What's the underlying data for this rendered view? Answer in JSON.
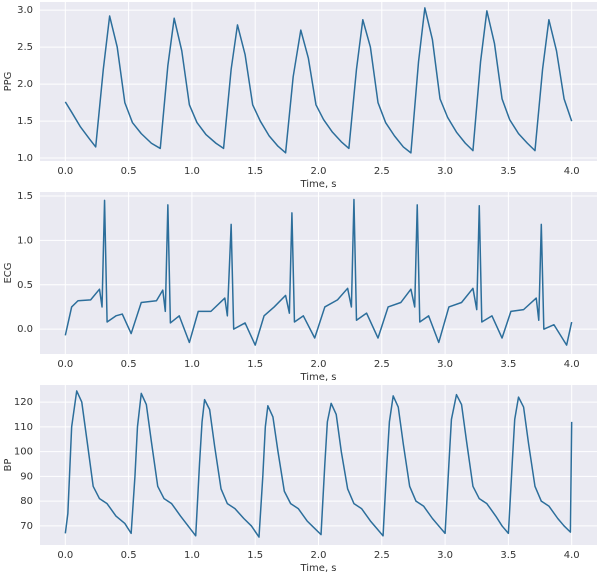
{
  "chart_data": [
    {
      "type": "line",
      "y_label": "PPG",
      "x_label": "Time, s",
      "grid": true,
      "xlim": [
        -0.2,
        4.2
      ],
      "ylim": [
        0.96,
        3.11
      ],
      "xticks": [
        {
          "value": 0,
          "label": "0.0"
        },
        0.5,
        {
          "value": 1,
          "label": "1.0"
        },
        1.5,
        {
          "value": 2,
          "label": "2.0"
        },
        2.5,
        {
          "value": 3,
          "label": "3.0"
        },
        3.5,
        {
          "value": 4,
          "label": "4.0"
        }
      ],
      "yticks": [
        {
          "value": 1,
          "label": "1.0"
        },
        1.5,
        {
          "value": 2,
          "label": "2.0"
        },
        2.5,
        {
          "value": 3,
          "label": "3.0"
        }
      ],
      "x": [
        0.0,
        0.05,
        0.12,
        0.19,
        0.24,
        0.3,
        0.35,
        0.41,
        0.47,
        0.53,
        0.6,
        0.68,
        0.75,
        0.81,
        0.86,
        0.92,
        0.98,
        1.04,
        1.11,
        1.19,
        1.25,
        1.31,
        1.36,
        1.42,
        1.48,
        1.54,
        1.61,
        1.68,
        1.74,
        1.8,
        1.86,
        1.92,
        1.98,
        2.04,
        2.11,
        2.18,
        2.24,
        2.3,
        2.35,
        2.41,
        2.47,
        2.53,
        2.6,
        2.67,
        2.73,
        2.79,
        2.84,
        2.9,
        2.96,
        3.02,
        3.09,
        3.16,
        3.22,
        3.28,
        3.33,
        3.39,
        3.45,
        3.51,
        3.58,
        3.65,
        3.71,
        3.77,
        3.82,
        3.88,
        3.94,
        4.0
      ],
      "series": [
        {
          "color": "#2c6e9b",
          "values": [
            1.76,
            1.62,
            1.42,
            1.26,
            1.15,
            2.2,
            2.92,
            2.5,
            1.75,
            1.48,
            1.33,
            1.2,
            1.13,
            2.25,
            2.89,
            2.45,
            1.72,
            1.48,
            1.32,
            1.2,
            1.13,
            2.2,
            2.8,
            2.4,
            1.72,
            1.5,
            1.3,
            1.16,
            1.07,
            2.1,
            2.73,
            2.35,
            1.72,
            1.52,
            1.35,
            1.22,
            1.13,
            2.2,
            2.87,
            2.5,
            1.75,
            1.48,
            1.3,
            1.15,
            1.07,
            2.3,
            3.03,
            2.6,
            1.8,
            1.55,
            1.35,
            1.2,
            1.1,
            2.3,
            2.99,
            2.55,
            1.8,
            1.52,
            1.33,
            1.2,
            1.1,
            2.2,
            2.87,
            2.45,
            1.8,
            1.5
          ]
        }
      ]
    },
    {
      "type": "line",
      "y_label": "ECG",
      "x_label": "Time, s",
      "grid": true,
      "xlim": [
        -0.2,
        4.2
      ],
      "ylim": [
        -0.28,
        1.545
      ],
      "xticks": [
        {
          "value": 0,
          "label": "0.0"
        },
        0.5,
        {
          "value": 1,
          "label": "1.0"
        },
        1.5,
        {
          "value": 2,
          "label": "2.0"
        },
        2.5,
        {
          "value": 3,
          "label": "3.0"
        },
        3.5,
        {
          "value": 4,
          "label": "4.0"
        }
      ],
      "yticks": [
        {
          "value": 0,
          "label": "0.0"
        },
        0.5,
        {
          "value": 1,
          "label": "1.0"
        },
        1.5
      ],
      "x": [
        0.0,
        0.05,
        0.1,
        0.2,
        0.27,
        0.29,
        0.31,
        0.33,
        0.4,
        0.45,
        0.52,
        0.6,
        0.72,
        0.77,
        0.79,
        0.81,
        0.83,
        0.9,
        0.98,
        1.05,
        1.15,
        1.26,
        1.28,
        1.31,
        1.33,
        1.42,
        1.5,
        1.57,
        1.65,
        1.74,
        1.77,
        1.79,
        1.81,
        1.88,
        1.97,
        2.05,
        2.15,
        2.23,
        2.26,
        2.28,
        2.3,
        2.38,
        2.47,
        2.55,
        2.65,
        2.73,
        2.76,
        2.78,
        2.8,
        2.87,
        2.95,
        3.03,
        3.13,
        3.22,
        3.25,
        3.27,
        3.29,
        3.37,
        3.45,
        3.52,
        3.62,
        3.72,
        3.74,
        3.76,
        3.78,
        3.86,
        3.96,
        4.0
      ],
      "series": [
        {
          "color": "#2c6e9b",
          "values": [
            -0.07,
            0.25,
            0.32,
            0.33,
            0.45,
            0.25,
            1.45,
            0.08,
            0.15,
            0.17,
            -0.05,
            0.3,
            0.32,
            0.44,
            0.2,
            1.4,
            0.07,
            0.15,
            -0.15,
            0.2,
            0.2,
            0.35,
            0.15,
            1.18,
            0.0,
            0.07,
            -0.18,
            0.15,
            0.25,
            0.38,
            0.18,
            1.31,
            0.08,
            0.15,
            -0.1,
            0.25,
            0.33,
            0.46,
            0.25,
            1.46,
            0.1,
            0.18,
            -0.1,
            0.25,
            0.3,
            0.45,
            0.25,
            1.4,
            0.08,
            0.15,
            -0.15,
            0.25,
            0.3,
            0.46,
            0.22,
            1.39,
            0.08,
            0.15,
            -0.1,
            0.2,
            0.22,
            0.35,
            0.1,
            1.18,
            0.0,
            0.05,
            -0.18,
            0.08
          ]
        }
      ]
    },
    {
      "type": "line",
      "y_label": "BP",
      "x_label": "Time, s",
      "grid": true,
      "xlim": [
        -0.2,
        4.2
      ],
      "ylim": [
        62.3,
        126.9
      ],
      "xticks": [
        {
          "value": 0,
          "label": "0.0"
        },
        0.5,
        {
          "value": 1,
          "label": "1.0"
        },
        1.5,
        {
          "value": 2,
          "label": "2.0"
        },
        2.5,
        {
          "value": 3,
          "label": "3.0"
        },
        3.5,
        {
          "value": 4,
          "label": "4.0"
        }
      ],
      "yticks": [
        70,
        80,
        90,
        100,
        110,
        120
      ],
      "x": [
        0.0,
        0.02,
        0.05,
        0.09,
        0.13,
        0.17,
        0.22,
        0.27,
        0.33,
        0.4,
        0.47,
        0.52,
        0.55,
        0.57,
        0.6,
        0.64,
        0.68,
        0.73,
        0.78,
        0.84,
        0.91,
        0.97,
        1.03,
        1.06,
        1.08,
        1.1,
        1.14,
        1.18,
        1.23,
        1.28,
        1.34,
        1.41,
        1.47,
        1.53,
        1.56,
        1.58,
        1.6,
        1.64,
        1.68,
        1.73,
        1.78,
        1.84,
        1.91,
        1.97,
        2.02,
        2.05,
        2.07,
        2.1,
        2.14,
        2.18,
        2.23,
        2.28,
        2.34,
        2.41,
        2.46,
        2.51,
        2.54,
        2.56,
        2.59,
        2.63,
        2.67,
        2.72,
        2.77,
        2.83,
        2.9,
        2.95,
        3.0,
        3.03,
        3.05,
        3.09,
        3.13,
        3.17,
        3.22,
        3.27,
        3.33,
        3.4,
        3.45,
        3.5,
        3.53,
        3.55,
        3.58,
        3.62,
        3.66,
        3.71,
        3.76,
        3.82,
        3.89,
        3.94,
        3.99,
        4.0
      ],
      "series": [
        {
          "color": "#2c6e9b",
          "values": [
            67,
            75,
            110,
            124.5,
            120,
            105,
            86,
            81,
            79,
            74,
            71,
            67,
            90,
            110,
            123.5,
            119,
            104,
            86,
            81,
            79,
            74,
            70,
            66,
            95,
            112,
            121,
            117,
            102,
            85,
            79,
            77,
            73,
            70,
            65.5,
            90,
            110,
            118.5,
            114,
            100,
            84,
            79,
            77,
            72,
            69,
            66.5,
            95,
            112,
            119.5,
            115,
            100,
            85,
            79,
            77,
            72,
            69,
            66,
            95,
            112,
            122.5,
            118,
            103,
            86,
            80,
            78,
            73,
            70,
            67,
            95,
            113,
            123,
            119,
            104,
            86,
            81,
            79,
            74,
            70,
            67,
            95,
            113,
            122,
            118,
            103,
            86,
            80,
            78,
            73,
            70,
            67.5,
            112
          ]
        }
      ]
    }
  ]
}
